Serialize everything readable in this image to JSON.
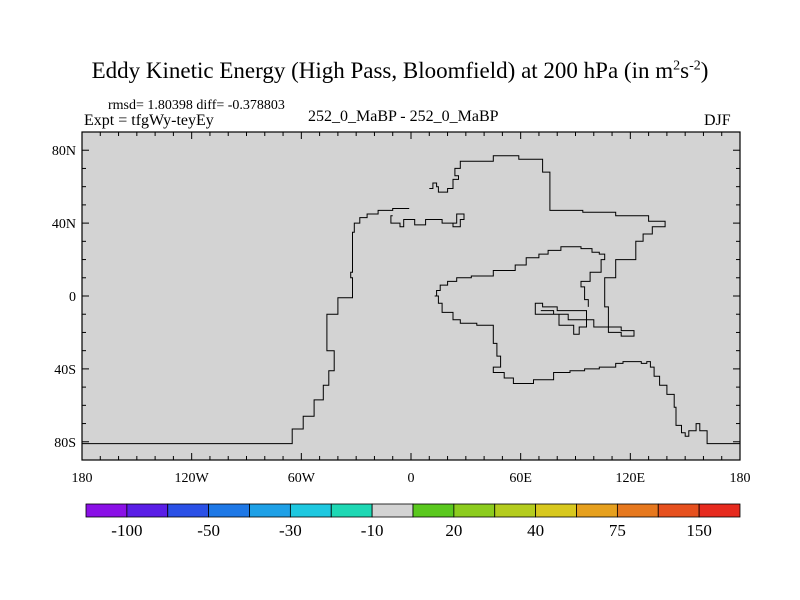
{
  "title_main": "Eddy Kinetic Energy (High Pass, Bloomfield) at 200 hPa (in m",
  "title_sup1": "2",
  "title_s": "s",
  "title_sup2": "-2",
  "title_close": ")",
  "stats": "rmsd= 1.80398 diff= -0.378803",
  "expt": "Expt = tfgWy-teyEy",
  "center_label": "252_0_MaBP - 252_0_MaBP",
  "season": "DJF",
  "colors": {
    "plot_bg": "#d3d3d3",
    "outline": "#000000",
    "palette": [
      "#8a10e6",
      "#5a1ee6",
      "#2a50e6",
      "#1e78e6",
      "#1ea0e6",
      "#1ec8e0",
      "#1ed8b4",
      "#d3d3d3",
      "#5ac81e",
      "#8ccc1e",
      "#b4cc1e",
      "#d8c81e",
      "#e6a01e",
      "#e6781e",
      "#e6501e",
      "#e62a1e"
    ]
  },
  "chart_data": {
    "type": "map",
    "projection": "cylindrical-equidistant",
    "xlim": [
      -180,
      180
    ],
    "ylim": [
      -90,
      90
    ],
    "x_ticks": [
      {
        "value": -180,
        "label": "180"
      },
      {
        "value": -120,
        "label": "120W"
      },
      {
        "value": -60,
        "label": "60W"
      },
      {
        "value": 0,
        "label": "0"
      },
      {
        "value": 60,
        "label": "60E"
      },
      {
        "value": 120,
        "label": "120E"
      },
      {
        "value": 180,
        "label": "180"
      }
    ],
    "y_ticks": [
      {
        "value": 80,
        "label": "80N"
      },
      {
        "value": 40,
        "label": "40N"
      },
      {
        "value": 0,
        "label": "0"
      },
      {
        "value": -40,
        "label": "40S"
      },
      {
        "value": -80,
        "label": "80S"
      }
    ],
    "field_value": 0,
    "colorbar": {
      "levels": [
        -150,
        -100,
        -75,
        -50,
        -40,
        -30,
        -20,
        -10,
        10,
        20,
        30,
        40,
        50,
        75,
        100,
        150
      ],
      "labels": [
        {
          "after_box": 1,
          "text": "-100"
        },
        {
          "after_box": 3,
          "text": "-50"
        },
        {
          "after_box": 5,
          "text": "-30"
        },
        {
          "after_box": 7,
          "text": "-10"
        },
        {
          "after_box": 9,
          "text": "20"
        },
        {
          "after_box": 11,
          "text": "40"
        },
        {
          "after_box": 13,
          "text": "75"
        },
        {
          "after_box": 15,
          "text": "150"
        }
      ]
    },
    "coastlines": [
      [
        [
          -180,
          -81
        ],
        [
          -65,
          -81
        ],
        [
          -65,
          -73
        ],
        [
          -59,
          -73
        ],
        [
          -59,
          -66
        ],
        [
          -53,
          -66
        ],
        [
          -53,
          -57
        ],
        [
          -48,
          -57
        ],
        [
          -48,
          -49
        ],
        [
          -45,
          -49
        ],
        [
          -45,
          -41
        ],
        [
          -42,
          -41
        ],
        [
          -42,
          -30
        ],
        [
          -46,
          -30
        ],
        [
          -46,
          -10
        ],
        [
          -40,
          -10
        ],
        [
          -40,
          -1
        ],
        [
          -36,
          -1
        ],
        [
          -36,
          -1
        ],
        [
          -32,
          -1
        ],
        [
          -32,
          10
        ],
        [
          -33,
          10
        ],
        [
          -33,
          13
        ],
        [
          -32,
          13
        ],
        [
          -32,
          35
        ],
        [
          -31,
          35
        ],
        [
          -31,
          40
        ],
        [
          -28,
          40
        ],
        [
          -28,
          43
        ],
        [
          -24,
          43
        ],
        [
          -24,
          45
        ],
        [
          -18,
          45
        ],
        [
          -18,
          47
        ],
        [
          -10,
          47
        ],
        [
          -10,
          48
        ],
        [
          -1,
          48
        ]
      ],
      [
        [
          -10,
          44
        ],
        [
          -11,
          44
        ],
        [
          -11,
          40
        ],
        [
          -6,
          40
        ],
        [
          -6,
          38
        ],
        [
          -4,
          38
        ],
        [
          -4,
          42
        ],
        [
          2,
          42
        ],
        [
          2,
          39
        ],
        [
          8,
          39
        ],
        [
          8,
          42
        ],
        [
          17,
          42
        ],
        [
          17,
          40
        ],
        [
          23,
          40
        ],
        [
          23,
          38
        ],
        [
          27,
          38
        ],
        [
          27,
          42
        ],
        [
          29,
          42
        ],
        [
          29,
          45
        ],
        [
          25,
          45
        ],
        [
          25,
          40
        ],
        [
          23,
          40
        ]
      ],
      [
        [
          10,
          59
        ],
        [
          12,
          59
        ],
        [
          12,
          62
        ],
        [
          14,
          62
        ],
        [
          14,
          60
        ],
        [
          15,
          60
        ],
        [
          15,
          57
        ],
        [
          20,
          57
        ],
        [
          20,
          59
        ],
        [
          23,
          59
        ],
        [
          23,
          64
        ],
        [
          26,
          64
        ],
        [
          26,
          66
        ],
        [
          24,
          66
        ],
        [
          24,
          70
        ],
        [
          27,
          70
        ],
        [
          27,
          74
        ],
        [
          45,
          74
        ],
        [
          45,
          77
        ],
        [
          59,
          77
        ],
        [
          59,
          75
        ],
        [
          72,
          75
        ],
        [
          72,
          68
        ],
        [
          76,
          68
        ],
        [
          76,
          47
        ],
        [
          94,
          47
        ],
        [
          94,
          46
        ],
        [
          112,
          46
        ],
        [
          112,
          44
        ],
        [
          130,
          44
        ],
        [
          130,
          41
        ],
        [
          139,
          41
        ],
        [
          139,
          38
        ],
        [
          132,
          38
        ],
        [
          132,
          34
        ],
        [
          127,
          34
        ],
        [
          127,
          30
        ],
        [
          123,
          30
        ],
        [
          123,
          20
        ],
        [
          112,
          20
        ],
        [
          112,
          10
        ],
        [
          106,
          10
        ],
        [
          106,
          -6
        ],
        [
          108,
          -6
        ],
        [
          108,
          -20
        ],
        [
          115,
          -20
        ],
        [
          115,
          -22
        ],
        [
          122,
          -22
        ],
        [
          122,
          -19
        ],
        [
          115,
          -19
        ],
        [
          115,
          -17
        ],
        [
          100,
          -17
        ],
        [
          100,
          -13
        ],
        [
          86,
          -13
        ],
        [
          86,
          -10
        ],
        [
          68,
          -10
        ],
        [
          68,
          -4
        ],
        [
          72,
          -4
        ],
        [
          72,
          -6
        ],
        [
          80,
          -6
        ],
        [
          80,
          -8
        ],
        [
          96,
          -8
        ],
        [
          96,
          -17
        ],
        [
          92,
          -17
        ],
        [
          92,
          -21
        ],
        [
          89,
          -21
        ],
        [
          89,
          -16
        ],
        [
          81,
          -16
        ],
        [
          81,
          -10
        ],
        [
          78,
          -10
        ],
        [
          78,
          -8
        ],
        [
          71,
          -8
        ]
      ],
      [
        [
          13,
          0
        ],
        [
          15,
          0
        ],
        [
          15,
          -4
        ],
        [
          17,
          -4
        ],
        [
          17,
          -9
        ],
        [
          23,
          -9
        ],
        [
          23,
          -13
        ],
        [
          27,
          -13
        ],
        [
          27,
          -15
        ],
        [
          36,
          -15
        ],
        [
          36,
          -16
        ],
        [
          45,
          -16
        ],
        [
          45,
          -26
        ],
        [
          47,
          -26
        ],
        [
          47,
          -33
        ],
        [
          49,
          -33
        ],
        [
          49,
          -39
        ],
        [
          45,
          -39
        ],
        [
          45,
          -42
        ],
        [
          46,
          -42
        ],
        [
          46,
          -42
        ],
        [
          51,
          -42
        ],
        [
          51,
          -45
        ],
        [
          56,
          -45
        ],
        [
          56,
          -48
        ],
        [
          67,
          -48
        ],
        [
          67,
          -46
        ],
        [
          78,
          -46
        ],
        [
          78,
          -42
        ],
        [
          87,
          -42
        ],
        [
          87,
          -41
        ],
        [
          95,
          -41
        ],
        [
          95,
          -40
        ],
        [
          103,
          -40
        ],
        [
          103,
          -39
        ],
        [
          112,
          -39
        ],
        [
          112,
          -37
        ],
        [
          116,
          -37
        ],
        [
          116,
          -36
        ],
        [
          126,
          -36
        ],
        [
          126,
          -37
        ],
        [
          129,
          -37
        ],
        [
          129,
          -36
        ],
        [
          131,
          -36
        ],
        [
          131,
          -39
        ],
        [
          133,
          -39
        ],
        [
          133,
          -44
        ],
        [
          136,
          -44
        ],
        [
          136,
          -49
        ],
        [
          140,
          -49
        ],
        [
          140,
          -54
        ],
        [
          144,
          -54
        ],
        [
          144,
          -61
        ],
        [
          145,
          -61
        ],
        [
          145,
          -71
        ],
        [
          148,
          -71
        ],
        [
          148,
          -75
        ],
        [
          150,
          -75
        ],
        [
          150,
          -77
        ],
        [
          152,
          -77
        ],
        [
          152,
          -74
        ],
        [
          156,
          -74
        ],
        [
          156,
          -70
        ],
        [
          158,
          -70
        ],
        [
          158,
          -74
        ],
        [
          162,
          -74
        ],
        [
          162,
          -81
        ],
        [
          180,
          -81
        ]
      ],
      [
        [
          13,
          0
        ],
        [
          14,
          0
        ],
        [
          14,
          3
        ],
        [
          16,
          3
        ],
        [
          16,
          6
        ],
        [
          20,
          6
        ],
        [
          20,
          8
        ],
        [
          25,
          8
        ],
        [
          25,
          10
        ],
        [
          33,
          10
        ],
        [
          33,
          11
        ],
        [
          45,
          11
        ],
        [
          45,
          14
        ],
        [
          57,
          14
        ],
        [
          57,
          17
        ],
        [
          63,
          17
        ],
        [
          63,
          21
        ],
        [
          70,
          21
        ],
        [
          70,
          23
        ],
        [
          75,
          23
        ],
        [
          75,
          25
        ],
        [
          82,
          25
        ],
        [
          82,
          27
        ],
        [
          93,
          27
        ],
        [
          93,
          26
        ],
        [
          99,
          26
        ],
        [
          99,
          24
        ],
        [
          103,
          24
        ],
        [
          103,
          23
        ],
        [
          106,
          23
        ],
        [
          106,
          20
        ],
        [
          104,
          20
        ],
        [
          104,
          13
        ],
        [
          98,
          13
        ],
        [
          98,
          8
        ],
        [
          93,
          8
        ],
        [
          93,
          5
        ],
        [
          95,
          5
        ],
        [
          95,
          -2
        ],
        [
          97,
          -2
        ],
        [
          97,
          -6
        ]
      ]
    ]
  }
}
